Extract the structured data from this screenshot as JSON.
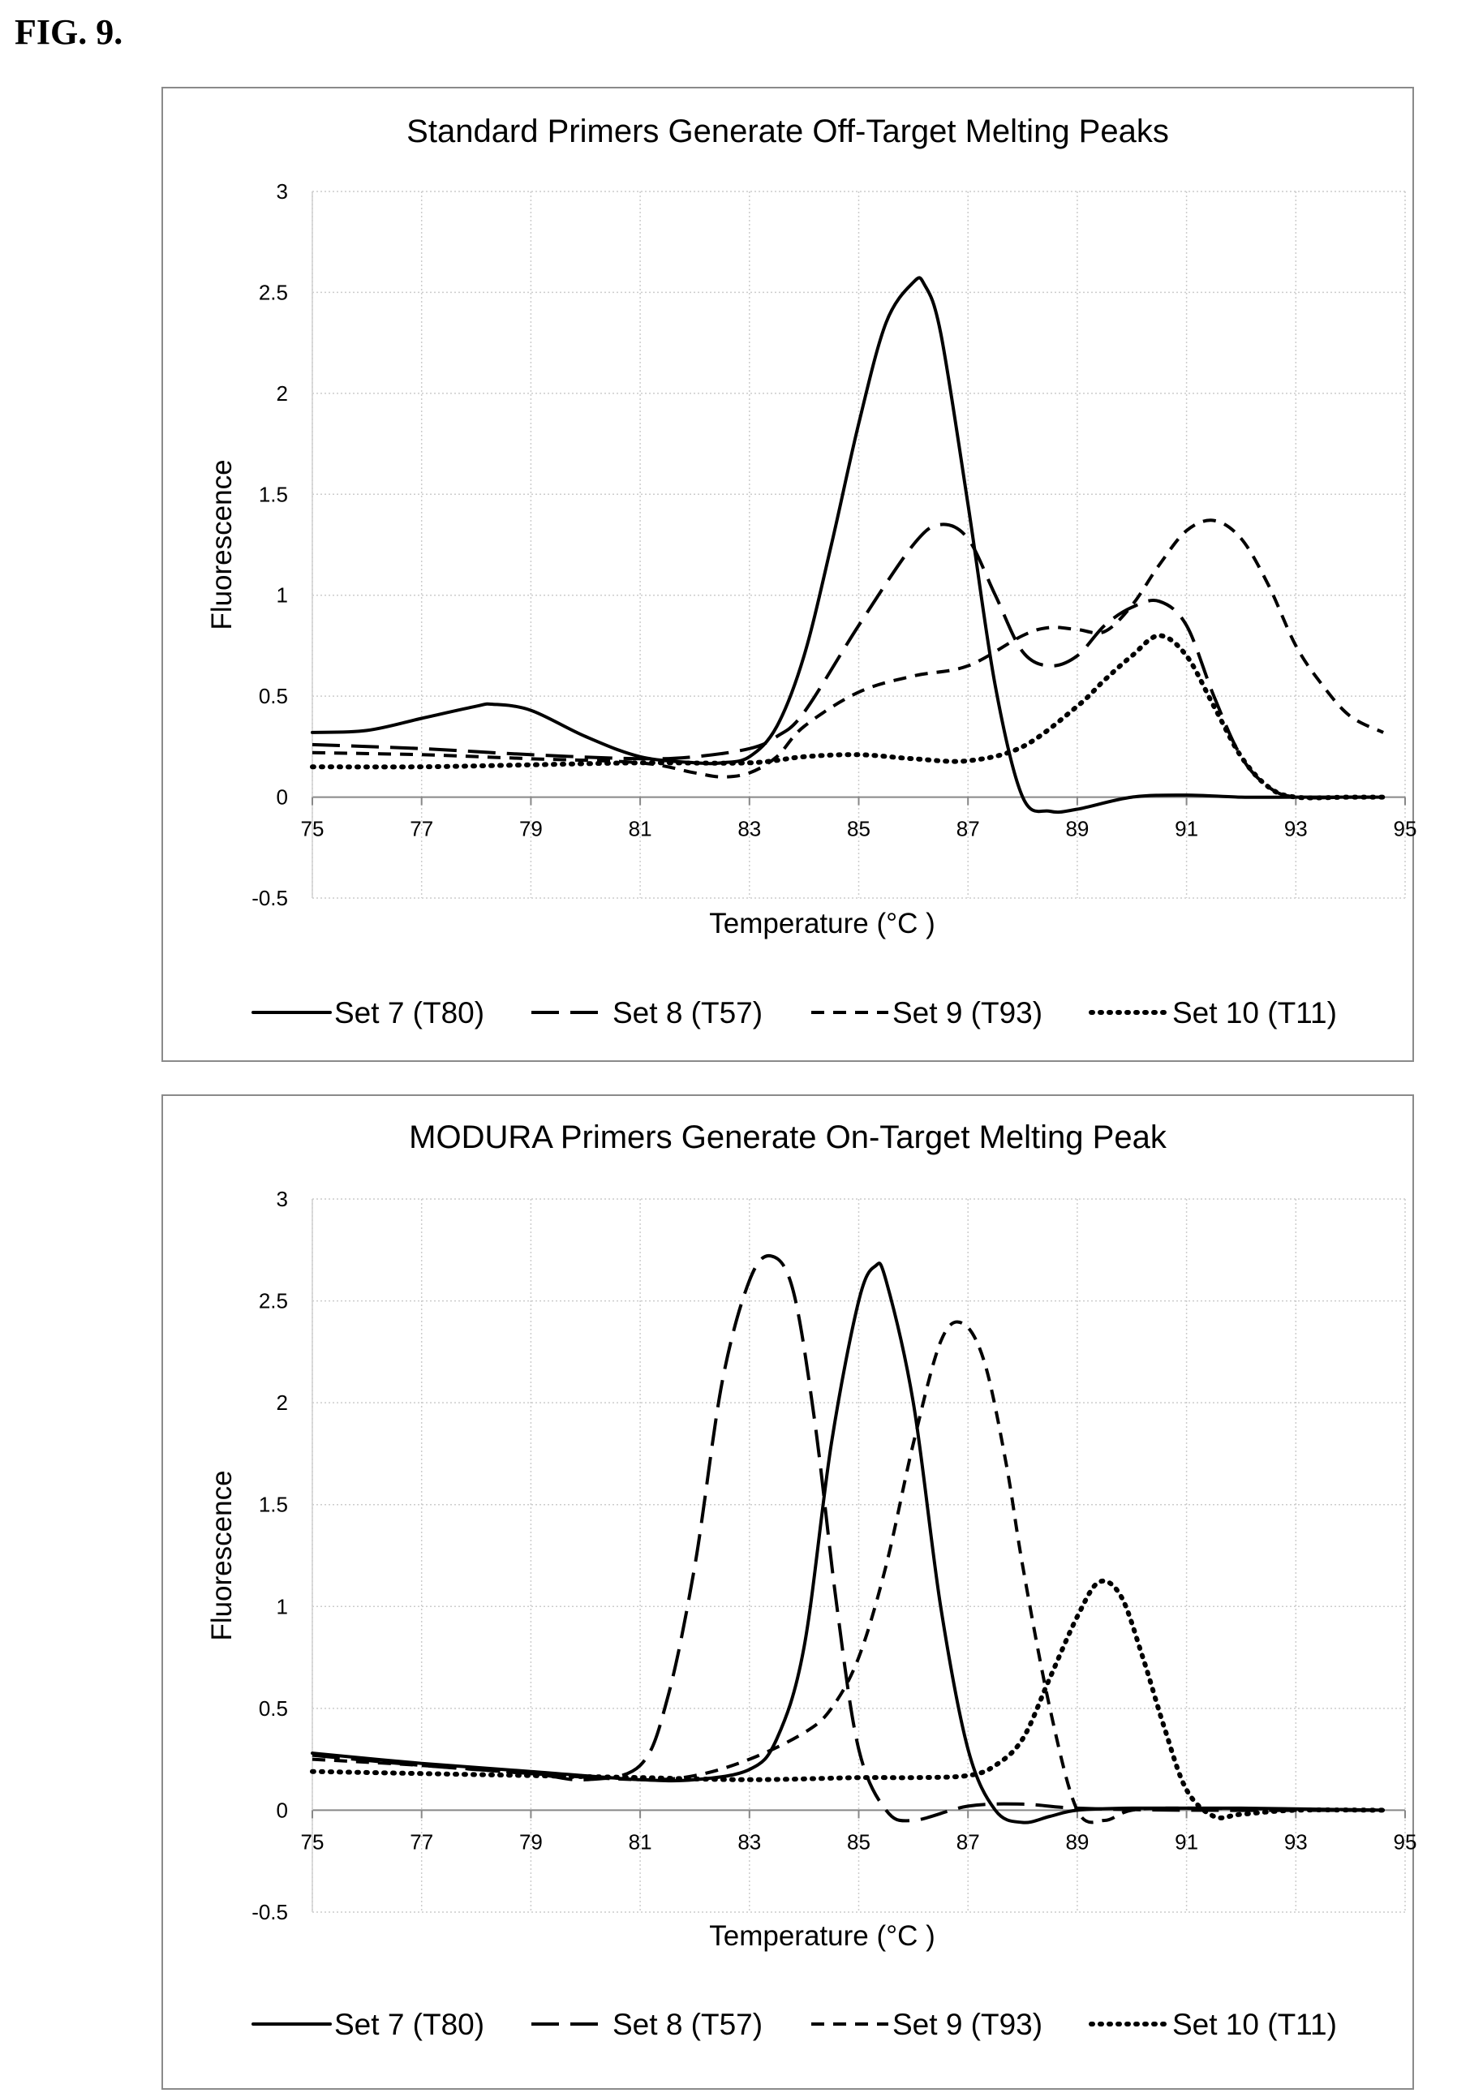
{
  "figure_label": "FIG. 9.",
  "chart_data": [
    {
      "type": "line",
      "title": "Standard Primers Generate Off-Target Melting Peaks",
      "xlabel": "Temperature (°C )",
      "ylabel": "Fluorescence",
      "xlim": [
        75,
        95
      ],
      "ylim": [
        -0.5,
        3
      ],
      "xticks": [
        75,
        77,
        79,
        81,
        83,
        85,
        87,
        89,
        91,
        93,
        95
      ],
      "yticks": [
        -0.5,
        0,
        0.5,
        1,
        1.5,
        2,
        2.5,
        3
      ],
      "grid": true,
      "legend_position": "bottom",
      "series": [
        {
          "name": "Set 7 (T80)",
          "style": "solid",
          "x": [
            75,
            76,
            77,
            78,
            78.3,
            79,
            80,
            81,
            82,
            82.5,
            83,
            83.5,
            84,
            84.5,
            85,
            85.5,
            86,
            86.2,
            86.5,
            87,
            87.5,
            88,
            88.5,
            89,
            90,
            91,
            92,
            93,
            94,
            94.6
          ],
          "y": [
            0.32,
            0.33,
            0.39,
            0.45,
            0.46,
            0.43,
            0.3,
            0.2,
            0.17,
            0.17,
            0.2,
            0.35,
            0.7,
            1.25,
            1.85,
            2.35,
            2.55,
            2.54,
            2.3,
            1.45,
            0.55,
            0.0,
            -0.07,
            -0.06,
            0.0,
            0.01,
            0.0,
            0.0,
            0.0,
            0.0
          ]
        },
        {
          "name": "Set 8 (T57)",
          "style": "long-dash",
          "x": [
            75,
            77,
            79,
            81,
            82,
            83,
            83.5,
            84,
            85,
            86,
            86.5,
            87,
            87.5,
            88,
            88.5,
            89,
            89.5,
            90,
            90.5,
            91,
            91.5,
            92,
            92.5,
            93,
            94,
            94.6
          ],
          "y": [
            0.26,
            0.24,
            0.21,
            0.19,
            0.2,
            0.24,
            0.3,
            0.42,
            0.85,
            1.25,
            1.35,
            1.28,
            1.0,
            0.72,
            0.65,
            0.7,
            0.85,
            0.94,
            0.97,
            0.85,
            0.5,
            0.2,
            0.05,
            0.0,
            0.0,
            0.0
          ]
        },
        {
          "name": "Set 9 (T93)",
          "style": "short-dash",
          "x": [
            75,
            77,
            79,
            81,
            82,
            82.5,
            83,
            83.5,
            84,
            85,
            86,
            87,
            88,
            88.5,
            89,
            89.5,
            90,
            90.5,
            91,
            91.5,
            92,
            92.5,
            93,
            93.5,
            94,
            94.6
          ],
          "y": [
            0.22,
            0.21,
            0.19,
            0.17,
            0.12,
            0.1,
            0.12,
            0.2,
            0.35,
            0.52,
            0.6,
            0.65,
            0.8,
            0.84,
            0.83,
            0.82,
            0.95,
            1.15,
            1.32,
            1.37,
            1.28,
            1.05,
            0.75,
            0.55,
            0.4,
            0.32
          ]
        },
        {
          "name": "Set 10 (T11)",
          "style": "dotted",
          "x": [
            75,
            77,
            79,
            81,
            83,
            84,
            85,
            86,
            87,
            88,
            89,
            89.5,
            90,
            90.5,
            91,
            91.5,
            92,
            92.5,
            93,
            94,
            94.6
          ],
          "y": [
            0.15,
            0.15,
            0.16,
            0.17,
            0.17,
            0.2,
            0.21,
            0.19,
            0.18,
            0.25,
            0.45,
            0.58,
            0.7,
            0.8,
            0.7,
            0.45,
            0.2,
            0.05,
            0.0,
            0.0,
            0.0
          ]
        }
      ]
    },
    {
      "type": "line",
      "title": "MODURA Primers Generate On-Target Melting Peak",
      "xlabel": "Temperature (°C )",
      "ylabel": "Fluorescence",
      "xlim": [
        75,
        95
      ],
      "ylim": [
        -0.5,
        3
      ],
      "xticks": [
        75,
        77,
        79,
        81,
        83,
        85,
        87,
        89,
        91,
        93,
        95
      ],
      "yticks": [
        -0.5,
        0,
        0.5,
        1,
        1.5,
        2,
        2.5,
        3
      ],
      "grid": true,
      "legend_position": "bottom",
      "series": [
        {
          "name": "Set 7 (T80)",
          "style": "solid",
          "x": [
            75,
            77,
            79,
            81,
            82,
            83,
            83.5,
            84,
            84.5,
            85,
            85.3,
            85.5,
            86,
            86.5,
            87,
            87.5,
            88,
            88.5,
            89,
            90,
            92,
            94.6
          ],
          "y": [
            0.28,
            0.23,
            0.19,
            0.15,
            0.15,
            0.2,
            0.35,
            0.8,
            1.8,
            2.5,
            2.67,
            2.6,
            2.0,
            1.0,
            0.3,
            0.0,
            -0.06,
            -0.03,
            0.0,
            0.01,
            0.01,
            0.0
          ]
        },
        {
          "name": "Set 8 (T57)",
          "style": "long-dash",
          "x": [
            75,
            77,
            79,
            80,
            81,
            81.5,
            82,
            82.5,
            83,
            83.4,
            83.8,
            84.2,
            84.6,
            85,
            85.5,
            86,
            87,
            88,
            89,
            91,
            94.6
          ],
          "y": [
            0.27,
            0.22,
            0.18,
            0.15,
            0.22,
            0.55,
            1.2,
            2.1,
            2.6,
            2.72,
            2.55,
            1.9,
            1.0,
            0.3,
            0.0,
            -0.05,
            0.02,
            0.03,
            0.01,
            0.0,
            0.0
          ]
        },
        {
          "name": "Set 9 (T93)",
          "style": "short-dash",
          "x": [
            75,
            77,
            79,
            81,
            82,
            83,
            84,
            84.5,
            85,
            85.5,
            86,
            86.5,
            86.9,
            87.3,
            87.7,
            88,
            88.5,
            89,
            89.5,
            90,
            91,
            94.6
          ],
          "y": [
            0.25,
            0.22,
            0.18,
            0.15,
            0.17,
            0.25,
            0.38,
            0.5,
            0.75,
            1.2,
            1.8,
            2.3,
            2.39,
            2.2,
            1.7,
            1.2,
            0.5,
            0.0,
            -0.05,
            0.0,
            0.01,
            0.0
          ]
        },
        {
          "name": "Set 10 (T11)",
          "style": "dotted",
          "x": [
            75,
            77,
            79,
            81,
            83,
            85,
            86,
            87,
            87.5,
            88,
            88.5,
            89,
            89.4,
            89.8,
            90.2,
            90.6,
            91,
            91.5,
            92,
            93,
            94.6
          ],
          "y": [
            0.19,
            0.18,
            0.17,
            0.16,
            0.15,
            0.16,
            0.16,
            0.17,
            0.22,
            0.35,
            0.65,
            0.95,
            1.12,
            1.05,
            0.75,
            0.4,
            0.1,
            -0.03,
            -0.02,
            0.0,
            0.0
          ]
        }
      ]
    }
  ]
}
